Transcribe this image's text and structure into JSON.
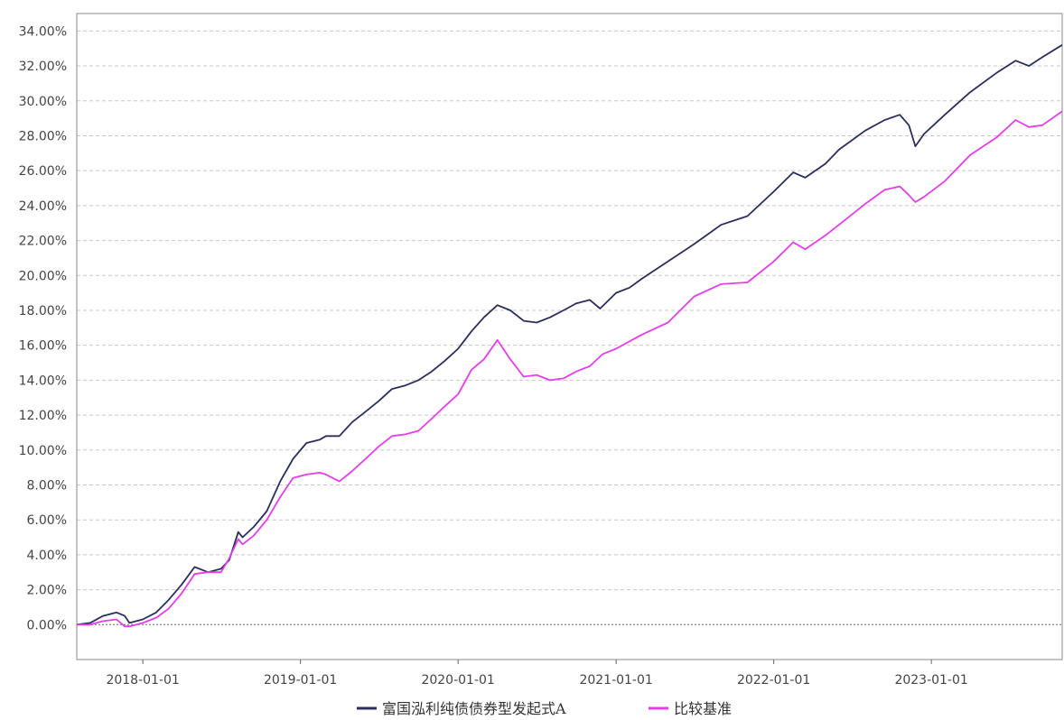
{
  "chart_data": {
    "type": "line",
    "title": "",
    "xlabel": "",
    "ylabel": "",
    "x_tick_labels": [
      "2018-01-01",
      "2019-01-01",
      "2020-01-01",
      "2021-01-01",
      "2022-01-01",
      "2023-01-01"
    ],
    "y_tick_labels": [
      "0.00%",
      "2.00%",
      "4.00%",
      "6.00%",
      "8.00%",
      "10.00%",
      "12.00%",
      "14.00%",
      "16.00%",
      "18.00%",
      "20.00%",
      "22.00%",
      "24.00%",
      "26.00%",
      "28.00%",
      "30.00%",
      "32.00%",
      "34.00%"
    ],
    "xlim": [
      "2017-08-01",
      "2023-10-31"
    ],
    "ylim": [
      -2,
      35
    ],
    "y_unit": "%",
    "grid": true,
    "legend_position": "bottom-center",
    "series": [
      {
        "name": "富国泓利纯债债券型发起式A",
        "color": "#2b2d5c",
        "points": [
          [
            "2017-08-01",
            0.0
          ],
          [
            "2017-09-01",
            0.1
          ],
          [
            "2017-10-01",
            0.5
          ],
          [
            "2017-11-01",
            0.7
          ],
          [
            "2017-11-20",
            0.5
          ],
          [
            "2017-12-01",
            0.1
          ],
          [
            "2018-01-01",
            0.3
          ],
          [
            "2018-02-01",
            0.7
          ],
          [
            "2018-03-01",
            1.4
          ],
          [
            "2018-04-01",
            2.3
          ],
          [
            "2018-05-01",
            3.3
          ],
          [
            "2018-06-01",
            3.0
          ],
          [
            "2018-07-01",
            3.2
          ],
          [
            "2018-07-20",
            3.7
          ],
          [
            "2018-08-10",
            5.3
          ],
          [
            "2018-08-20",
            5.0
          ],
          [
            "2018-09-15",
            5.6
          ],
          [
            "2018-10-15",
            6.5
          ],
          [
            "2018-11-15",
            8.2
          ],
          [
            "2018-12-15",
            9.5
          ],
          [
            "2019-01-15",
            10.4
          ],
          [
            "2019-02-15",
            10.6
          ],
          [
            "2019-03-01",
            10.8
          ],
          [
            "2019-04-01",
            10.8
          ],
          [
            "2019-05-01",
            11.6
          ],
          [
            "2019-06-01",
            12.2
          ],
          [
            "2019-07-01",
            12.8
          ],
          [
            "2019-08-01",
            13.5
          ],
          [
            "2019-09-01",
            13.7
          ],
          [
            "2019-10-01",
            14.0
          ],
          [
            "2019-11-01",
            14.5
          ],
          [
            "2019-12-01",
            15.1
          ],
          [
            "2020-01-01",
            15.8
          ],
          [
            "2020-02-01",
            16.8
          ],
          [
            "2020-03-01",
            17.6
          ],
          [
            "2020-04-01",
            18.3
          ],
          [
            "2020-05-01",
            18.0
          ],
          [
            "2020-06-01",
            17.4
          ],
          [
            "2020-07-01",
            17.3
          ],
          [
            "2020-08-01",
            17.6
          ],
          [
            "2020-09-01",
            18.0
          ],
          [
            "2020-10-01",
            18.4
          ],
          [
            "2020-11-01",
            18.6
          ],
          [
            "2020-11-25",
            18.1
          ],
          [
            "2021-01-01",
            19.0
          ],
          [
            "2021-02-01",
            19.3
          ],
          [
            "2021-03-01",
            19.8
          ],
          [
            "2021-05-01",
            20.8
          ],
          [
            "2021-07-01",
            21.8
          ],
          [
            "2021-09-01",
            22.9
          ],
          [
            "2021-11-01",
            23.4
          ],
          [
            "2022-01-01",
            24.8
          ],
          [
            "2022-02-15",
            25.9
          ],
          [
            "2022-03-15",
            25.6
          ],
          [
            "2022-05-01",
            26.4
          ],
          [
            "2022-06-01",
            27.2
          ],
          [
            "2022-08-01",
            28.3
          ],
          [
            "2022-09-15",
            28.9
          ],
          [
            "2022-10-20",
            29.2
          ],
          [
            "2022-11-10",
            28.6
          ],
          [
            "2022-11-25",
            27.4
          ],
          [
            "2022-12-15",
            28.1
          ],
          [
            "2023-02-01",
            29.2
          ],
          [
            "2023-04-01",
            30.5
          ],
          [
            "2023-06-01",
            31.6
          ],
          [
            "2023-07-15",
            32.3
          ],
          [
            "2023-08-15",
            32.0
          ],
          [
            "2023-09-15",
            32.5
          ],
          [
            "2023-10-31",
            33.2
          ]
        ]
      },
      {
        "name": "比较基准",
        "color": "#e43de9",
        "points": [
          [
            "2017-08-01",
            0.0
          ],
          [
            "2017-09-01",
            0.0
          ],
          [
            "2017-10-01",
            0.2
          ],
          [
            "2017-11-01",
            0.3
          ],
          [
            "2017-11-20",
            -0.1
          ],
          [
            "2017-12-01",
            -0.1
          ],
          [
            "2018-01-01",
            0.1
          ],
          [
            "2018-02-01",
            0.4
          ],
          [
            "2018-03-01",
            0.9
          ],
          [
            "2018-04-01",
            1.8
          ],
          [
            "2018-05-01",
            2.9
          ],
          [
            "2018-06-01",
            3.0
          ],
          [
            "2018-07-01",
            3.0
          ],
          [
            "2018-07-20",
            3.8
          ],
          [
            "2018-08-10",
            4.9
          ],
          [
            "2018-08-20",
            4.6
          ],
          [
            "2018-09-15",
            5.1
          ],
          [
            "2018-10-15",
            6.0
          ],
          [
            "2018-11-15",
            7.3
          ],
          [
            "2018-12-15",
            8.4
          ],
          [
            "2019-01-15",
            8.6
          ],
          [
            "2019-02-15",
            8.7
          ],
          [
            "2019-03-01",
            8.6
          ],
          [
            "2019-04-01",
            8.2
          ],
          [
            "2019-05-01",
            8.8
          ],
          [
            "2019-06-01",
            9.5
          ],
          [
            "2019-07-01",
            10.2
          ],
          [
            "2019-08-01",
            10.8
          ],
          [
            "2019-09-01",
            10.9
          ],
          [
            "2019-10-01",
            11.1
          ],
          [
            "2019-11-01",
            11.8
          ],
          [
            "2019-12-01",
            12.5
          ],
          [
            "2020-01-01",
            13.2
          ],
          [
            "2020-02-01",
            14.6
          ],
          [
            "2020-03-01",
            15.2
          ],
          [
            "2020-04-01",
            16.3
          ],
          [
            "2020-05-01",
            15.2
          ],
          [
            "2020-06-01",
            14.2
          ],
          [
            "2020-07-01",
            14.3
          ],
          [
            "2020-08-01",
            14.0
          ],
          [
            "2020-09-01",
            14.1
          ],
          [
            "2020-10-01",
            14.5
          ],
          [
            "2020-11-01",
            14.8
          ],
          [
            "2020-12-01",
            15.5
          ],
          [
            "2021-01-01",
            15.8
          ],
          [
            "2021-03-01",
            16.6
          ],
          [
            "2021-05-01",
            17.3
          ],
          [
            "2021-07-01",
            18.8
          ],
          [
            "2021-09-01",
            19.5
          ],
          [
            "2021-11-01",
            19.6
          ],
          [
            "2022-01-01",
            20.8
          ],
          [
            "2022-02-15",
            21.9
          ],
          [
            "2022-03-15",
            21.5
          ],
          [
            "2022-05-01",
            22.3
          ],
          [
            "2022-06-01",
            22.9
          ],
          [
            "2022-08-01",
            24.1
          ],
          [
            "2022-09-15",
            24.9
          ],
          [
            "2022-10-20",
            25.1
          ],
          [
            "2022-11-10",
            24.6
          ],
          [
            "2022-11-25",
            24.2
          ],
          [
            "2022-12-15",
            24.5
          ],
          [
            "2023-02-01",
            25.4
          ],
          [
            "2023-04-01",
            26.9
          ],
          [
            "2023-06-01",
            27.9
          ],
          [
            "2023-07-15",
            28.9
          ],
          [
            "2023-08-15",
            28.5
          ],
          [
            "2023-09-15",
            28.6
          ],
          [
            "2023-10-31",
            29.4
          ]
        ]
      }
    ]
  }
}
